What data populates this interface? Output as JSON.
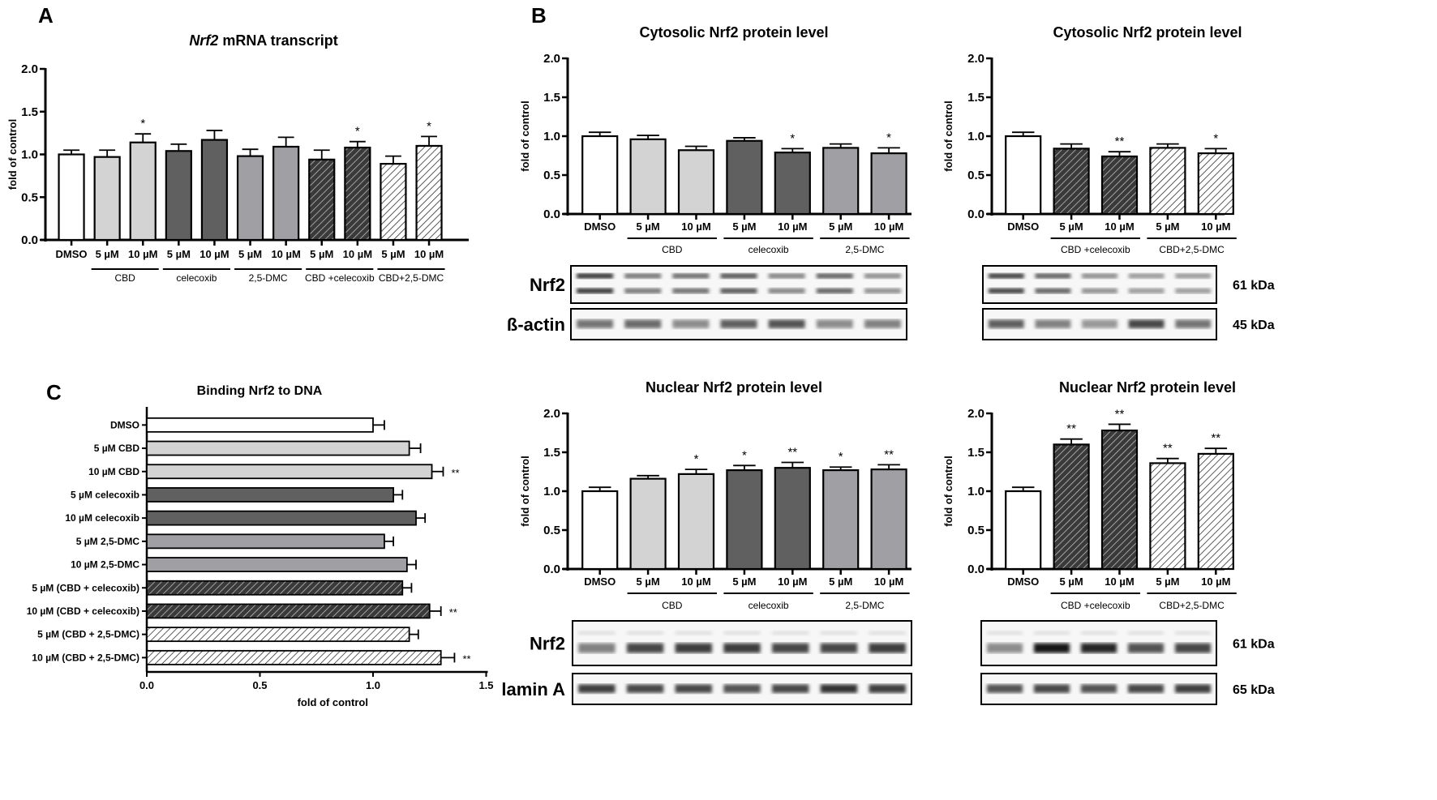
{
  "figure": {
    "panel_letters": [
      "A",
      "B",
      "C"
    ]
  },
  "palette": {
    "DMSO": "#ffffff",
    "CBD": "#d3d3d3",
    "celecoxib": "#606060",
    "2,5-DMC": "#a0a0a4",
    "CBD+celecoxib": "#3a3a3a",
    "CBD+2,5-DMC": "#f2f2f2"
  },
  "chart_data": [
    {
      "id": "A",
      "type": "bar",
      "title_italic": "Nrf2",
      "title_rest": " mRNA transcript",
      "ylabel": "fold of control",
      "ylim": [
        0,
        2.0
      ],
      "yticks": [
        "0.0",
        "0.5",
        "1.0",
        "1.5",
        "2.0"
      ],
      "categories": [
        "DMSO",
        "5 µM",
        "10 µM",
        "5 µM",
        "10 µM",
        "5 µM",
        "10 µM",
        "5 µM",
        "10 µM",
        "5 µM",
        "10 µM"
      ],
      "groups": [
        "CBD",
        "celecoxib",
        "2,5-DMC",
        "CBD +celecoxib",
        "CBD+2,5-DMC"
      ],
      "treatments": [
        "DMSO",
        "CBD",
        "CBD",
        "celecoxib",
        "celecoxib",
        "2,5-DMC",
        "2,5-DMC",
        "CBD+celecoxib",
        "CBD+celecoxib",
        "CBD+2,5-DMC",
        "CBD+2,5-DMC"
      ],
      "values": [
        1.0,
        0.97,
        1.14,
        1.04,
        1.17,
        0.98,
        1.09,
        0.94,
        1.08,
        0.89,
        1.1
      ],
      "errors": [
        0.05,
        0.08,
        0.1,
        0.08,
        0.11,
        0.08,
        0.11,
        0.11,
        0.07,
        0.09,
        0.11
      ],
      "significance": [
        "",
        "",
        "*",
        "",
        "",
        "",
        "",
        "",
        "*",
        "",
        "*"
      ]
    },
    {
      "id": "B-cyto-single",
      "type": "bar",
      "title": "Cytosolic Nrf2 protein level",
      "ylabel": "fold of control",
      "ylim": [
        0,
        2.0
      ],
      "yticks": [
        "0.0",
        "0.5",
        "1.0",
        "1.5",
        "2.0"
      ],
      "categories": [
        "DMSO",
        "5 µM",
        "10 µM",
        "5 µM",
        "10 µM",
        "5 µM",
        "10 µM"
      ],
      "groups": [
        "CBD",
        "celecoxib",
        "2,5-DMC"
      ],
      "treatments": [
        "DMSO",
        "CBD",
        "CBD",
        "celecoxib",
        "celecoxib",
        "2,5-DMC",
        "2,5-DMC"
      ],
      "values": [
        1.0,
        0.96,
        0.82,
        0.94,
        0.79,
        0.85,
        0.78
      ],
      "errors": [
        0.05,
        0.05,
        0.05,
        0.04,
        0.05,
        0.05,
        0.07
      ],
      "significance": [
        "",
        "",
        "",
        "",
        "*",
        "",
        "*"
      ]
    },
    {
      "id": "B-cyto-combo",
      "type": "bar",
      "title": "Cytosolic Nrf2 protein level",
      "ylabel": "fold of control",
      "ylim": [
        0,
        2.0
      ],
      "yticks": [
        "0.0",
        "0.5",
        "1.0",
        "1.5",
        "2.0"
      ],
      "categories": [
        "DMSO",
        "5 µM",
        "10 µM",
        "5 µM",
        "10 µM"
      ],
      "groups": [
        "CBD +celecoxib",
        "CBD+2,5-DMC"
      ],
      "treatments": [
        "DMSO",
        "CBD+celecoxib",
        "CBD+celecoxib",
        "CBD+2,5-DMC",
        "CBD+2,5-DMC"
      ],
      "values": [
        1.0,
        0.84,
        0.74,
        0.85,
        0.78
      ],
      "errors": [
        0.05,
        0.06,
        0.06,
        0.05,
        0.06
      ],
      "significance": [
        "",
        "",
        "**",
        "",
        "*"
      ]
    },
    {
      "id": "B-nuc-single",
      "type": "bar",
      "title": "Nuclear Nrf2 protein level",
      "ylabel": "fold of control",
      "ylim": [
        0,
        2.0
      ],
      "yticks": [
        "0.0",
        "0.5",
        "1.0",
        "1.5",
        "2.0"
      ],
      "categories": [
        "DMSO",
        "5 µM",
        "10 µM",
        "5 µM",
        "10 µM",
        "5 µM",
        "10 µM"
      ],
      "groups": [
        "CBD",
        "celecoxib",
        "2,5-DMC"
      ],
      "treatments": [
        "DMSO",
        "CBD",
        "CBD",
        "celecoxib",
        "celecoxib",
        "2,5-DMC",
        "2,5-DMC"
      ],
      "values": [
        1.0,
        1.16,
        1.22,
        1.27,
        1.3,
        1.27,
        1.28
      ],
      "errors": [
        0.05,
        0.04,
        0.06,
        0.06,
        0.07,
        0.04,
        0.06
      ],
      "significance": [
        "",
        "",
        "*",
        "*",
        "**",
        "*",
        "**"
      ]
    },
    {
      "id": "B-nuc-combo",
      "type": "bar",
      "title": "Nuclear Nrf2 protein level",
      "ylabel": "fold of control",
      "ylim": [
        0,
        2.0
      ],
      "yticks": [
        "0.0",
        "0.5",
        "1.0",
        "1.5",
        "2.0"
      ],
      "categories": [
        "DMSO",
        "5 µM",
        "10 µM",
        "5 µM",
        "10 µM"
      ],
      "groups": [
        "CBD +celecoxib",
        "CBD+2,5-DMC"
      ],
      "treatments": [
        "DMSO",
        "CBD+celecoxib",
        "CBD+celecoxib",
        "CBD+2,5-DMC",
        "CBD+2,5-DMC"
      ],
      "values": [
        1.0,
        1.6,
        1.78,
        1.36,
        1.48
      ],
      "errors": [
        0.05,
        0.07,
        0.08,
        0.06,
        0.07
      ],
      "significance": [
        "",
        "**",
        "**",
        "**",
        "**"
      ]
    },
    {
      "id": "C",
      "type": "bar",
      "orientation": "horizontal",
      "title": "Binding Nrf2 to DNA",
      "xlabel": "fold of control",
      "xlim": [
        0,
        1.5
      ],
      "xticks": [
        "0.0",
        "0.5",
        "1.0",
        "1.5"
      ],
      "categories": [
        "DMSO",
        "5 µM CBD",
        "10 µM CBD",
        "5 µM celecoxib",
        "10 µM celecoxib",
        "5 µM 2,5-DMC",
        "10 µM 2,5-DMC",
        "5 µM (CBD + celecoxib)",
        "10 µM (CBD + celecoxib)",
        "5 µM (CBD + 2,5-DMC)",
        "10 µM (CBD + 2,5-DMC)"
      ],
      "treatments": [
        "DMSO",
        "CBD",
        "CBD",
        "celecoxib",
        "celecoxib",
        "2,5-DMC",
        "2,5-DMC",
        "CBD+celecoxib",
        "CBD+celecoxib",
        "CBD+2,5-DMC",
        "CBD+2,5-DMC"
      ],
      "values": [
        1.0,
        1.16,
        1.26,
        1.09,
        1.19,
        1.05,
        1.15,
        1.13,
        1.25,
        1.16,
        1.3
      ],
      "errors": [
        0.05,
        0.05,
        0.05,
        0.04,
        0.04,
        0.04,
        0.04,
        0.04,
        0.05,
        0.04,
        0.06
      ],
      "significance": [
        "",
        "",
        "**",
        "",
        "",
        "",
        "",
        "",
        "**",
        "",
        "**"
      ]
    }
  ],
  "blots": {
    "cyto_single": {
      "rows": [
        {
          "label": "Nrf2",
          "intensity": [
            0.9,
            0.6,
            0.65,
            0.75,
            0.55,
            0.7,
            0.5
          ]
        },
        {
          "label": "ß-actin",
          "intensity": [
            0.6,
            0.65,
            0.5,
            0.7,
            0.75,
            0.5,
            0.55
          ]
        }
      ]
    },
    "cyto_combo": {
      "rows": [
        {
          "label": "",
          "kda": "61 kDa",
          "intensity": [
            0.85,
            0.7,
            0.5,
            0.45,
            0.45
          ]
        },
        {
          "label": "",
          "kda": "45 kDa",
          "intensity": [
            0.7,
            0.55,
            0.45,
            0.8,
            0.6
          ]
        }
      ]
    },
    "nuc_single": {
      "rows": [
        {
          "label": "Nrf2",
          "intensity": [
            0.55,
            0.8,
            0.85,
            0.85,
            0.8,
            0.8,
            0.85
          ]
        },
        {
          "label": "lamin A",
          "intensity": [
            0.85,
            0.8,
            0.8,
            0.75,
            0.8,
            0.9,
            0.85
          ]
        }
      ]
    },
    "nuc_combo": {
      "rows": [
        {
          "label": "",
          "kda": "61 kDa",
          "intensity": [
            0.5,
            1.0,
            0.95,
            0.75,
            0.8
          ]
        },
        {
          "label": "",
          "kda": "65 kDa",
          "intensity": [
            0.75,
            0.8,
            0.75,
            0.8,
            0.85
          ]
        }
      ]
    }
  }
}
